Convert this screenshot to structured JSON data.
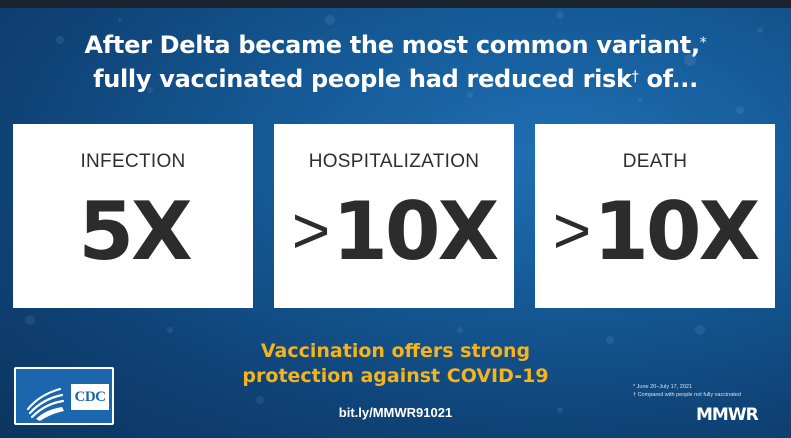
{
  "headline": {
    "line1": "After Delta became the most common variant,",
    "line1_mark": "*",
    "line2": "fully vaccinated people had reduced risk",
    "line2_mark": "†",
    "line2_tail": " of..."
  },
  "cards": [
    {
      "label": "INFECTION",
      "prefix": "",
      "value": "5X"
    },
    {
      "label": "HOSPITALIZATION",
      "prefix": ">",
      "value": "10X"
    },
    {
      "label": "DEATH",
      "prefix": ">",
      "value": "10X"
    }
  ],
  "tagline": {
    "line1": "Vaccination offers strong",
    "line2": "protection against COVID-19"
  },
  "link": "bit.ly/MMWR91021",
  "logo": {
    "name": "CDC",
    "icon": "hhs-eagle-icon"
  },
  "footnotes": {
    "note1": "* June 20–July 17, 2021",
    "note2": "† Compared with people not fully vaccinated"
  },
  "brand": "MMWR",
  "colors": {
    "background": "#155a97",
    "accent": "#f6b41a",
    "card": "#ffffff",
    "card_text": "#2c2c2c"
  }
}
